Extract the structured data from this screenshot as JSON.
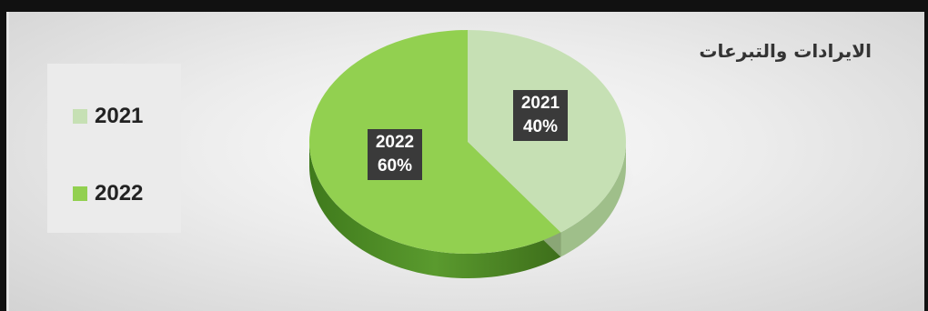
{
  "chart_data": {
    "type": "pie",
    "title": "الايرادات والتبرعات",
    "categories": [
      "2021",
      "2022"
    ],
    "values": [
      40,
      60
    ],
    "labels": [
      {
        "category": "2021",
        "percent": "40%"
      },
      {
        "category": "2022",
        "percent": "60%"
      }
    ],
    "colors": [
      "#c6e0b4",
      "#92d050"
    ],
    "side_colors": [
      "#9fbf8a",
      "#4e8a24"
    ],
    "legend_position": "left",
    "style": "3d"
  }
}
